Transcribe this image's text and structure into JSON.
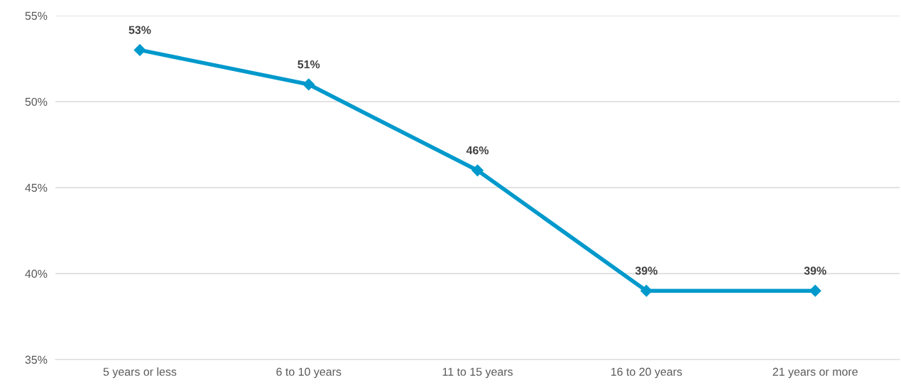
{
  "chart_data": {
    "type": "line",
    "categories": [
      "5 years or less",
      "6 to 10 years",
      "11 to 15 years",
      "16 to 20 years",
      "21 years or more"
    ],
    "series": [
      {
        "color": "#0099cc",
        "values": [
          53,
          51,
          46,
          39,
          39
        ],
        "value_labels": [
          "53%",
          "51%",
          "46%",
          "39%",
          "39%"
        ]
      }
    ],
    "ylim": [
      35,
      55
    ],
    "yticks": [
      {
        "value": 35,
        "label": "35%"
      },
      {
        "value": 40,
        "label": "40%"
      },
      {
        "value": 45,
        "label": "45%"
      },
      {
        "value": 50,
        "label": "50%"
      },
      {
        "value": 55,
        "label": "55%"
      }
    ],
    "grid": "y",
    "marker": "diamond",
    "line_style": "solid",
    "legend": false
  }
}
